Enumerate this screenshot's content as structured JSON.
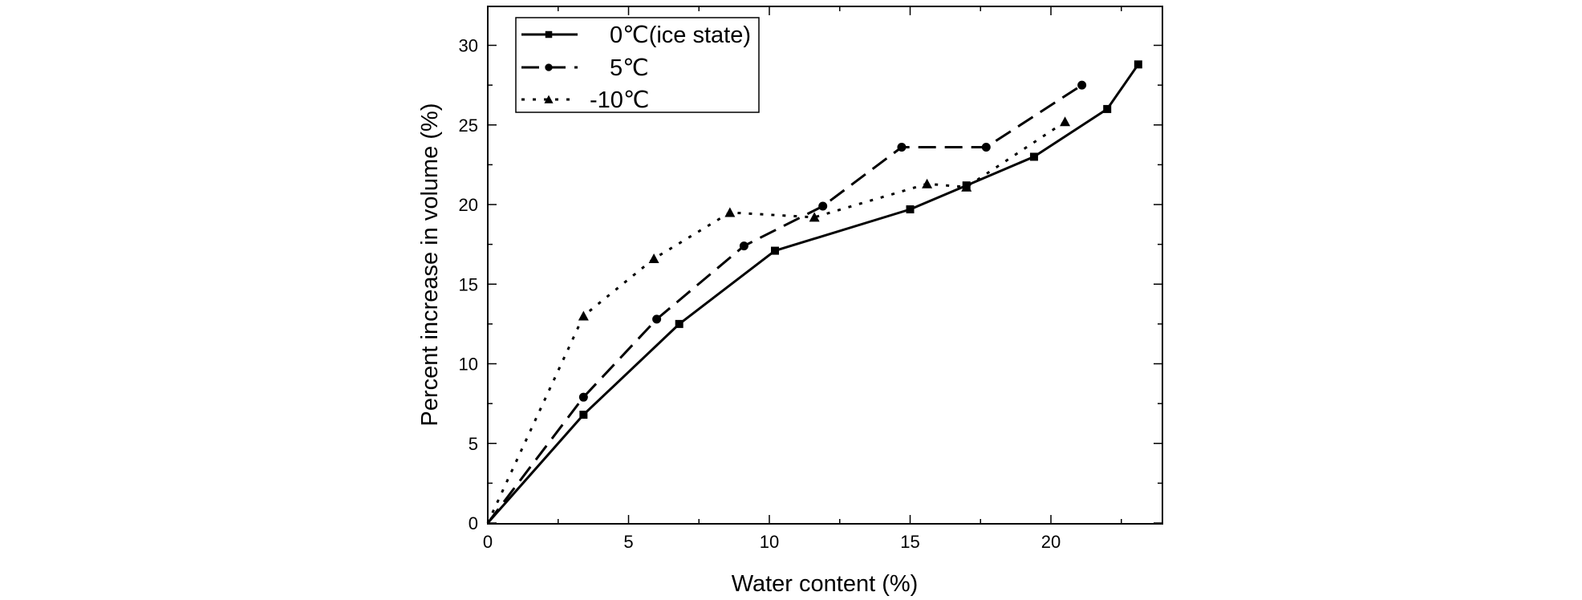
{
  "chart_data": {
    "type": "line",
    "title": "",
    "xlabel": "Water content (%)",
    "ylabel": "Percent increase in volume (%)",
    "xlim": [
      0,
      24
    ],
    "ylim": [
      0,
      32.5
    ],
    "x_ticks": [
      0,
      5,
      10,
      15,
      20
    ],
    "y_ticks": [
      0,
      5,
      10,
      15,
      20,
      25,
      30
    ],
    "x_tick_labels": [
      "0",
      "5",
      "10",
      "15",
      "20"
    ],
    "y_tick_labels": [
      "0",
      "5",
      "10",
      "15",
      "20",
      "25",
      "30"
    ],
    "grid": false,
    "legend_position": "top-left",
    "series": [
      {
        "name": "0℃(ice state)",
        "line_style": "solid",
        "marker": "square",
        "x": [
          0,
          3.4,
          6.8,
          10.2,
          15.0,
          17.0,
          19.4,
          22.0,
          23.1
        ],
        "y": [
          0,
          6.8,
          12.5,
          17.1,
          19.7,
          21.2,
          23.0,
          26.0,
          28.8
        ]
      },
      {
        "name": "5℃",
        "line_style": "dashed",
        "marker": "circle",
        "x": [
          0,
          3.4,
          6.0,
          9.1,
          11.9,
          14.7,
          17.7,
          21.1
        ],
        "y": [
          0,
          7.9,
          12.8,
          17.4,
          19.9,
          23.6,
          23.6,
          27.5
        ]
      },
      {
        "name": "-10℃",
        "line_style": "dotted",
        "marker": "triangle",
        "x": [
          0,
          3.4,
          5.9,
          8.6,
          11.6,
          15.6,
          17.0,
          20.5
        ],
        "y": [
          0,
          13.0,
          16.6,
          19.5,
          19.2,
          21.3,
          21.1,
          25.2
        ]
      }
    ]
  }
}
